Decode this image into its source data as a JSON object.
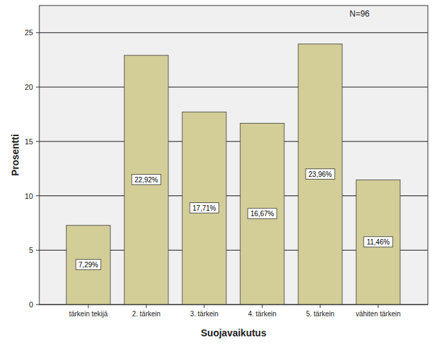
{
  "chart_data": {
    "type": "bar",
    "x_label": "Suojavaikutus",
    "y_label": "Prosentti",
    "annotation": "N=96",
    "categories": [
      "tärkein tekijä",
      "2. tärkein",
      "3. tärkein",
      "4. tärkein",
      "5. tärkein",
      "vähiten tärkein"
    ],
    "values": [
      7.29,
      22.92,
      17.71,
      16.67,
      23.96,
      11.46
    ],
    "value_labels": [
      "7,29%",
      "22,92%",
      "17,71%",
      "16,67%",
      "23,96%",
      "11,46%"
    ],
    "color": "#d3ce97",
    "data_labels": true,
    "ylim": [
      0,
      27.5
    ],
    "yticks": [
      0,
      5,
      10,
      15,
      20,
      25
    ],
    "grid": true
  }
}
